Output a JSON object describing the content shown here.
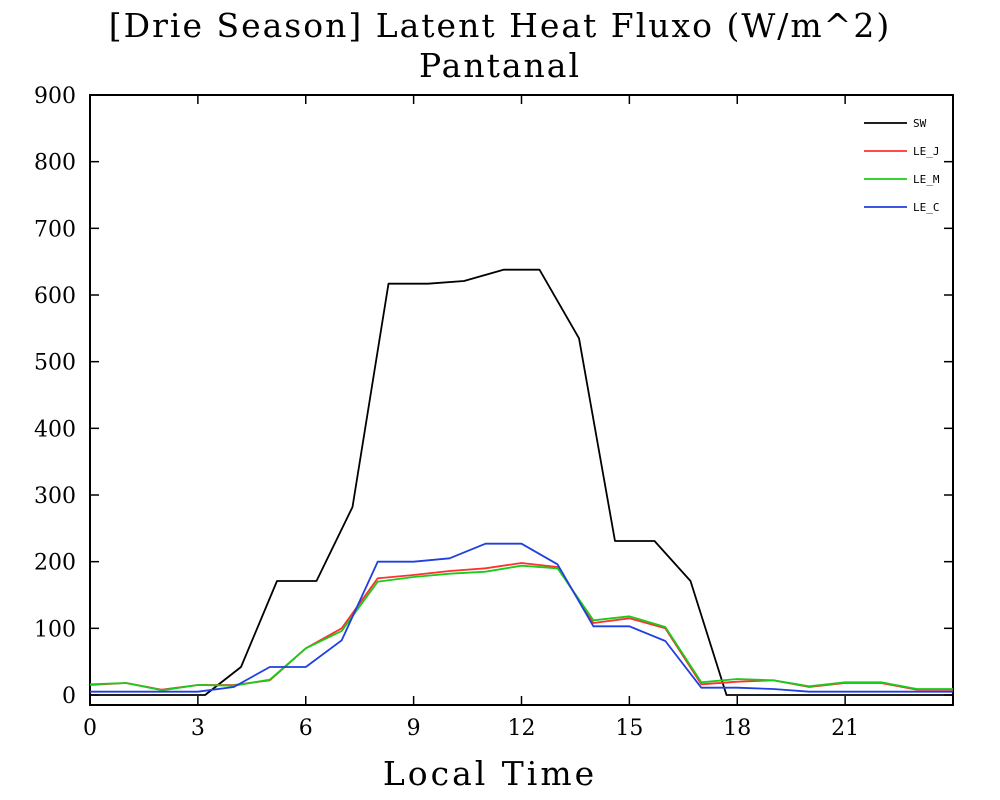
{
  "chart_data": {
    "type": "line",
    "title": "[Drie Season] Latent Heat Fluxo (W/m^2)",
    "subtitle": "Pantanal",
    "xlabel": "Local Time",
    "ylabel": "",
    "xlim": [
      0,
      24
    ],
    "ylim": [
      -15,
      900
    ],
    "xticks": [
      0,
      3,
      6,
      9,
      12,
      15,
      18,
      21
    ],
    "yticks": [
      0,
      100,
      200,
      300,
      400,
      500,
      600,
      700,
      800,
      900
    ],
    "legend_position": "top-right",
    "grid": false,
    "x": [
      0,
      1,
      2,
      3,
      4,
      5,
      6,
      7,
      8,
      9,
      10,
      11,
      12,
      13,
      14,
      15,
      16,
      17,
      18,
      19,
      20,
      21,
      22,
      23,
      24
    ],
    "series": [
      {
        "name": "SW",
        "color": "#000000",
        "x": [
          0,
          3.2,
          4.2,
          5.2,
          6.3,
          7.3,
          8.3,
          9.4,
          10.4,
          11.5,
          12.5,
          13.6,
          14.6,
          15.7,
          16.7,
          17.7,
          24
        ],
        "values": [
          0,
          0,
          42,
          171,
          171,
          282,
          617,
          617,
          621,
          638,
          638,
          535,
          231,
          231,
          171,
          0,
          0
        ]
      },
      {
        "name": "LE_J",
        "color": "#ff3030",
        "values": [
          15,
          18,
          8,
          15,
          15,
          22,
          70,
          100,
          175,
          180,
          186,
          190,
          198,
          192,
          108,
          115,
          100,
          16,
          20,
          22,
          12,
          18,
          18,
          8,
          8
        ]
      },
      {
        "name": "LE_M",
        "color": "#19cc19",
        "values": [
          16,
          18,
          7,
          15,
          14,
          23,
          70,
          96,
          170,
          177,
          182,
          185,
          194,
          190,
          112,
          118,
          102,
          19,
          24,
          22,
          13,
          19,
          19,
          9,
          9
        ]
      },
      {
        "name": "LE_C",
        "color": "#1f3fe0",
        "values": [
          5,
          5,
          5,
          5,
          12,
          42,
          42,
          82,
          200,
          200,
          205,
          227,
          227,
          196,
          103,
          103,
          81,
          11,
          11,
          9,
          5,
          5,
          5,
          5,
          5
        ]
      }
    ]
  }
}
